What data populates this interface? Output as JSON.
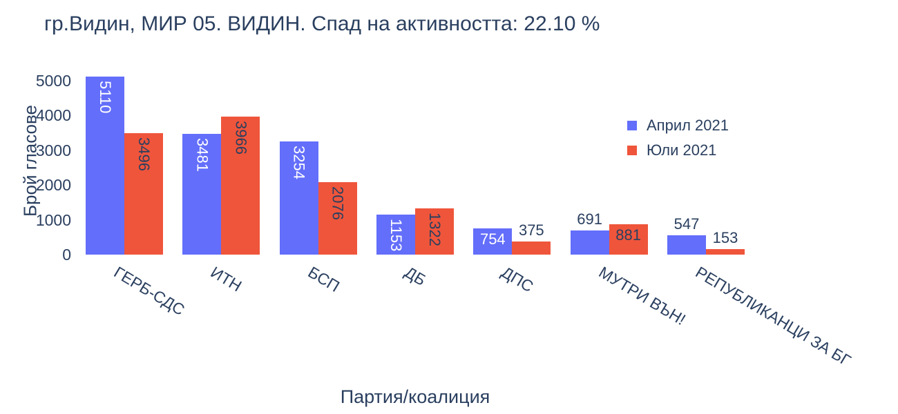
{
  "chart_data": {
    "type": "bar",
    "title": "гр.Видин, МИР 05. ВИДИН. Спад на активността: 22.10 %",
    "xlabel": "Партия/коалиция",
    "ylabel": "Брой гласове",
    "categories": [
      "ГЕРБ-СДС",
      "ИТН",
      "БСП",
      "ДБ",
      "ДПС",
      "МУТРИ ВЪН!",
      "РЕПУБЛИКАНЦИ ЗА БГ"
    ],
    "series": [
      {
        "name": "Април 2021",
        "color": "#636efa",
        "inside_label_color": "#ffffff",
        "values": [
          5110,
          3481,
          3254,
          1153,
          754,
          691,
          547
        ],
        "label_positions": [
          "inside-v",
          "inside-v",
          "inside-v",
          "inside-v",
          "inside-h",
          "outside",
          "outside"
        ]
      },
      {
        "name": "Юли 2021",
        "color": "#ef553b",
        "inside_label_color": "#2a3f5f",
        "values": [
          3496,
          3966,
          2076,
          1322,
          375,
          881,
          153
        ],
        "label_positions": [
          "inside-v",
          "inside-v",
          "inside-v",
          "inside-v",
          "outside",
          "inside-h",
          "outside"
        ]
      }
    ],
    "yticks": [
      0,
      1000,
      2000,
      3000,
      4000,
      5000
    ],
    "ylim": [
      0,
      5400
    ],
    "grid": false,
    "axis_lines": false,
    "tick_angle": 31,
    "legend_position": "inside-top-right",
    "outside_label_color": "#2a3f5f",
    "text_color": "#2a3f5f",
    "background": "#ffffff"
  }
}
